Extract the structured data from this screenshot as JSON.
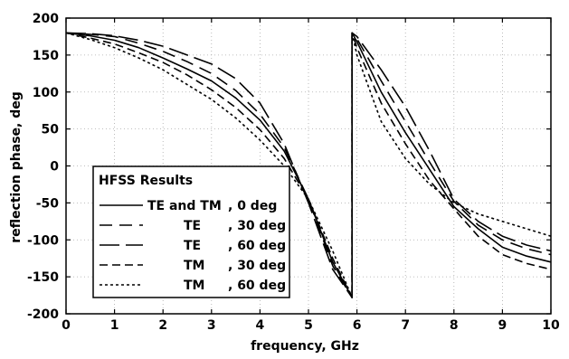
{
  "chart_data": {
    "type": "line",
    "title": "",
    "xlabel": "frequency, GHz",
    "ylabel": "reflection phase, deg",
    "xlim": [
      0,
      10
    ],
    "ylim": [
      -200,
      200
    ],
    "x_ticks": [
      0,
      1,
      2,
      3,
      4,
      5,
      6,
      7,
      8,
      9,
      10
    ],
    "y_ticks": [
      200,
      150,
      100,
      50,
      0,
      -50,
      -100,
      -150,
      -200
    ],
    "grid": "dotted",
    "legend": {
      "placement": "bottom-left",
      "title": "HFSS Results",
      "entries": [
        {
          "mode": "TE and TM",
          "angle": ",  0   deg",
          "dash": "solid"
        },
        {
          "mode": "TE",
          "angle": ", 30 deg",
          "dash": "long-dash"
        },
        {
          "mode": "TE",
          "angle": ", 60 deg",
          "dash": "very-long-dash"
        },
        {
          "mode": "TM",
          "angle": ", 30 deg",
          "dash": "dash"
        },
        {
          "mode": "TM",
          "angle": ", 60 deg",
          "dash": "dot"
        }
      ]
    },
    "series": [
      {
        "label_index": 0,
        "dash": "solid",
        "x": [
          0,
          0.5,
          1,
          1.5,
          2,
          2.5,
          3,
          3.5,
          4,
          4.5,
          5,
          5.5,
          5.9,
          5.9,
          6,
          6.5,
          7,
          7.5,
          8,
          8.5,
          9,
          9.5,
          10
        ],
        "y": [
          180,
          176,
          170,
          160,
          146,
          131,
          115,
          92,
          62,
          20,
          -45,
          -130,
          -178,
          180,
          168,
          100,
          45,
          -5,
          -55,
          -85,
          -110,
          -122,
          -130
        ]
      },
      {
        "label_index": 1,
        "dash": "long-dash",
        "x": [
          0,
          0.5,
          1,
          1.5,
          2,
          2.5,
          3,
          3.5,
          4,
          4.5,
          5,
          5.5,
          5.9,
          5.9,
          6,
          6.5,
          7,
          7.5,
          8,
          8.5,
          9,
          9.5,
          10
        ],
        "y": [
          180,
          178,
          175,
          166,
          155,
          141,
          125,
          102,
          70,
          25,
          -45,
          -135,
          -178,
          180,
          172,
          115,
          60,
          5,
          -48,
          -80,
          -100,
          -112,
          -120
        ]
      },
      {
        "label_index": 2,
        "dash": "very-long-dash",
        "x": [
          0,
          0.5,
          1,
          1.5,
          2,
          2.5,
          3,
          3.5,
          4,
          4.5,
          5,
          5.5,
          5.9,
          5.9,
          6,
          6.5,
          7,
          7.5,
          8,
          8.5,
          9,
          9.5,
          10
        ],
        "y": [
          180,
          179,
          176,
          170,
          162,
          150,
          138,
          118,
          85,
          30,
          -50,
          -140,
          -178,
          180,
          175,
          130,
          80,
          20,
          -45,
          -75,
          -95,
          -107,
          -115
        ]
      },
      {
        "label_index": 3,
        "dash": "dash",
        "x": [
          0,
          0.5,
          1,
          1.5,
          2,
          2.5,
          3,
          3.5,
          4,
          4.5,
          5,
          5.5,
          5.9,
          5.9,
          6,
          6.5,
          7,
          7.5,
          8,
          8.5,
          9,
          9.5,
          10
        ],
        "y": [
          180,
          173,
          165,
          153,
          140,
          123,
          103,
          79,
          49,
          10,
          -45,
          -125,
          -178,
          180,
          160,
          85,
          30,
          -20,
          -58,
          -95,
          -120,
          -132,
          -140
        ]
      },
      {
        "label_index": 4,
        "dash": "dot",
        "x": [
          0,
          0.5,
          1,
          1.5,
          2,
          2.5,
          3,
          3.5,
          4,
          4.5,
          5,
          5.5,
          5.9,
          5.9,
          6,
          6.5,
          7,
          7.5,
          8,
          8.5,
          9,
          9.5,
          10
        ],
        "y": [
          180,
          171,
          160,
          146,
          130,
          110,
          90,
          65,
          35,
          0,
          -45,
          -115,
          -178,
          180,
          150,
          60,
          10,
          -25,
          -50,
          -65,
          -75,
          -85,
          -95
        ]
      }
    ]
  }
}
